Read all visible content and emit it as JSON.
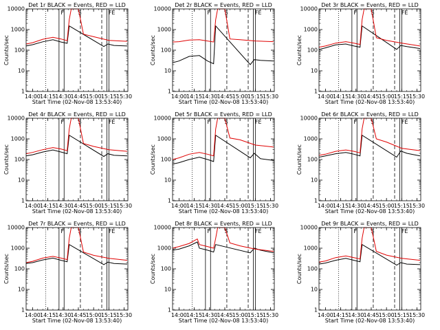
{
  "figure": {
    "xlabel": "Start Time (02-Nov-08 13:53:40)",
    "ylabel": "Counts/sec",
    "colors": {
      "events": "#000000",
      "lld": "#e00000"
    }
  },
  "chart_data": [
    {
      "type": "line",
      "title": "Det 1r BLACK = Events, RED = LLD",
      "xlabel": "Start Time (02-Nov-08 13:53:40)",
      "ylabel": "Counts/sec",
      "xticks": [
        "14:00",
        "14:15",
        "14:30",
        "14:45",
        "15:00",
        "15:15",
        "15:30"
      ],
      "xlim": [
        "13:53:40",
        "15:33:40"
      ],
      "yscale": "log",
      "yticks": [
        "1",
        "10",
        "100",
        "1000",
        "10000"
      ],
      "ylim": [
        1,
        10000
      ],
      "markers": [
        "F",
        "S",
        "F",
        "E"
      ],
      "series": [
        {
          "name": "Events",
          "color": "#000000",
          "x": [
            "13:53:40",
            "14:00",
            "14:10",
            "14:20",
            "14:28",
            "14:34",
            "14:36",
            "15:10",
            "15:14",
            "15:20",
            "15:33"
          ],
          "y": [
            160,
            185,
            255,
            320,
            250,
            215,
            1500,
            150,
            200,
            170,
            160
          ]
        },
        {
          "name": "LLD",
          "color": "#e00000",
          "x": [
            "13:53:40",
            "14:00",
            "14:10",
            "14:20",
            "14:28",
            "14:34",
            "14:36",
            "14:38",
            "14:45",
            "14:50",
            "15:00",
            "15:15",
            "15:33"
          ],
          "y": [
            200,
            230,
            340,
            420,
            350,
            290,
            3000,
            10000,
            10000,
            600,
            450,
            300,
            270
          ]
        }
      ]
    },
    {
      "type": "line",
      "title": "Det 2r BLACK = Events, RED = LLD",
      "xlabel": "Start Time (02-Nov-08 13:53:40)",
      "ylabel": "Counts/sec",
      "xticks": [
        "14:00",
        "14:15",
        "14:30",
        "14:45",
        "15:00",
        "15:15",
        "15:30"
      ],
      "xlim": [
        "13:53:40",
        "15:33:40"
      ],
      "yscale": "log",
      "yticks": [
        "1",
        "10",
        "100",
        "1000",
        "10000"
      ],
      "ylim": [
        1,
        10000
      ],
      "markers": [
        "F",
        "S",
        "F",
        "E"
      ],
      "series": [
        {
          "name": "Events",
          "color": "#000000",
          "x": [
            "13:53:40",
            "14:00",
            "14:10",
            "14:20",
            "14:28",
            "14:34",
            "14:36",
            "15:10",
            "15:14",
            "15:20",
            "15:33"
          ],
          "y": [
            25,
            30,
            50,
            55,
            30,
            22,
            1500,
            20,
            35,
            32,
            30
          ]
        },
        {
          "name": "LLD",
          "color": "#e00000",
          "x": [
            "13:53:40",
            "14:00",
            "14:10",
            "14:20",
            "14:28",
            "14:34",
            "14:36",
            "14:38",
            "14:45",
            "14:50",
            "15:00",
            "15:15",
            "15:33"
          ],
          "y": [
            250,
            260,
            310,
            320,
            280,
            250,
            3000,
            10000,
            10000,
            350,
            320,
            280,
            260
          ]
        }
      ]
    },
    {
      "type": "line",
      "title": "Det 3r BLACK = Events, RED = LLD",
      "xlabel": "Start Time (02-Nov-08 13:53:40)",
      "ylabel": "Counts/sec",
      "xticks": [
        "14:00",
        "14:15",
        "14:30",
        "14:45",
        "15:00",
        "15:15",
        "15:30"
      ],
      "xlim": [
        "13:53:40",
        "15:33:40"
      ],
      "yscale": "log",
      "yticks": [
        "1",
        "10",
        "100",
        "1000",
        "10000"
      ],
      "ylim": [
        1,
        10000
      ],
      "markers": [
        "F",
        "S",
        "F",
        "E"
      ],
      "series": [
        {
          "name": "Events",
          "color": "#000000",
          "x": [
            "13:53:40",
            "14:00",
            "14:10",
            "14:20",
            "14:28",
            "14:34",
            "14:36",
            "15:10",
            "15:14",
            "15:20",
            "15:33"
          ],
          "y": [
            110,
            130,
            180,
            200,
            160,
            140,
            1500,
            110,
            170,
            150,
            120
          ]
        },
        {
          "name": "LLD",
          "color": "#e00000",
          "x": [
            "13:53:40",
            "14:00",
            "14:10",
            "14:20",
            "14:28",
            "14:34",
            "14:36",
            "14:38",
            "14:45",
            "14:50",
            "15:00",
            "15:15",
            "15:33"
          ],
          "y": [
            140,
            160,
            220,
            260,
            220,
            190,
            3000,
            10000,
            10000,
            400,
            300,
            220,
            160
          ]
        }
      ]
    },
    {
      "type": "line",
      "title": "Det 4r BLACK = Events, RED = LLD",
      "xlabel": "Start Time (02-Nov-08 13:53:40)",
      "ylabel": "Counts/sec",
      "xticks": [
        "14:00",
        "14:15",
        "14:30",
        "14:45",
        "15:00",
        "15:15",
        "15:30"
      ],
      "xlim": [
        "13:53:40",
        "15:33:40"
      ],
      "yscale": "log",
      "yticks": [
        "1",
        "10",
        "100",
        "1000",
        "10000"
      ],
      "ylim": [
        1,
        10000
      ],
      "markers": [
        "F",
        "S",
        "F",
        "E"
      ],
      "series": [
        {
          "name": "Events",
          "color": "#000000",
          "x": [
            "13:53:40",
            "14:00",
            "14:10",
            "14:20",
            "14:28",
            "14:34",
            "14:36",
            "15:10",
            "15:14",
            "15:20",
            "15:33"
          ],
          "y": [
            150,
            170,
            230,
            290,
            230,
            190,
            1500,
            140,
            190,
            160,
            150
          ]
        },
        {
          "name": "LLD",
          "color": "#e00000",
          "x": [
            "13:53:40",
            "14:00",
            "14:10",
            "14:20",
            "14:28",
            "14:34",
            "14:36",
            "14:38",
            "14:45",
            "14:50",
            "15:00",
            "15:15",
            "15:33"
          ],
          "y": [
            190,
            220,
            300,
            380,
            320,
            270,
            3000,
            10000,
            10000,
            600,
            430,
            300,
            250
          ]
        }
      ]
    },
    {
      "type": "line",
      "title": "Det 5r BLACK = Events, RED = LLD",
      "xlabel": "Start Time (02-Nov-08 13:53:40)",
      "ylabel": "Counts/sec",
      "xticks": [
        "14:00",
        "14:15",
        "14:30",
        "14:45",
        "15:00",
        "15:15",
        "15:30"
      ],
      "xlim": [
        "13:53:40",
        "15:33:40"
      ],
      "yscale": "log",
      "yticks": [
        "1",
        "10",
        "100",
        "1000",
        "10000"
      ],
      "ylim": [
        1,
        10000
      ],
      "markers": [
        "F",
        "S",
        "F",
        "E"
      ],
      "series": [
        {
          "name": "Events",
          "color": "#000000",
          "x": [
            "13:53:40",
            "14:00",
            "14:10",
            "14:20",
            "14:28",
            "14:34",
            "14:36",
            "15:10",
            "15:14",
            "15:20",
            "15:33"
          ],
          "y": [
            60,
            70,
            100,
            130,
            100,
            80,
            1500,
            120,
            200,
            110,
            90
          ]
        },
        {
          "name": "LLD",
          "color": "#e00000",
          "x": [
            "13:53:40",
            "14:00",
            "14:10",
            "14:20",
            "14:28",
            "14:34",
            "14:36",
            "14:38",
            "14:45",
            "14:50",
            "15:00",
            "15:15",
            "15:33"
          ],
          "y": [
            100,
            120,
            180,
            220,
            180,
            150,
            3000,
            10000,
            10000,
            1100,
            900,
            500,
            400
          ]
        }
      ]
    },
    {
      "type": "line",
      "title": "Det 6r BLACK = Events, RED = LLD",
      "xlabel": "Start Time (02-Nov-08 13:53:40)",
      "ylabel": "Counts/sec",
      "xticks": [
        "14:00",
        "14:15",
        "14:30",
        "14:45",
        "15:00",
        "15:15",
        "15:30"
      ],
      "xlim": [
        "13:53:40",
        "15:33:40"
      ],
      "yscale": "log",
      "yticks": [
        "1",
        "10",
        "100",
        "1000",
        "10000"
      ],
      "ylim": [
        1,
        10000
      ],
      "markers": [
        "F",
        "S",
        "F",
        "E"
      ],
      "series": [
        {
          "name": "Events",
          "color": "#000000",
          "x": [
            "13:53:40",
            "14:00",
            "14:10",
            "14:20",
            "14:28",
            "14:34",
            "14:36",
            "15:10",
            "15:14",
            "15:20",
            "15:33"
          ],
          "y": [
            130,
            150,
            190,
            220,
            180,
            150,
            1500,
            130,
            260,
            200,
            150
          ]
        },
        {
          "name": "LLD",
          "color": "#e00000",
          "x": [
            "13:53:40",
            "14:00",
            "14:10",
            "14:20",
            "14:28",
            "14:34",
            "14:36",
            "14:38",
            "14:45",
            "14:50",
            "15:00",
            "15:15",
            "15:33"
          ],
          "y": [
            160,
            180,
            250,
            290,
            250,
            210,
            3000,
            10000,
            10000,
            1000,
            700,
            350,
            270
          ]
        }
      ]
    },
    {
      "type": "line",
      "title": "Det 7r BLACK = Events, RED = LLD",
      "xlabel": "Start Time (02-Nov-08 13:53:40)",
      "ylabel": "Counts/sec",
      "xticks": [
        "14:00",
        "14:15",
        "14:30",
        "14:45",
        "15:00",
        "15:15",
        "15:30"
      ],
      "xlim": [
        "13:53:40",
        "15:33:40"
      ],
      "yscale": "log",
      "yticks": [
        "1",
        "10",
        "100",
        "1000",
        "10000"
      ],
      "ylim": [
        1,
        10000
      ],
      "markers": [
        "F",
        "S",
        "F",
        "E"
      ],
      "series": [
        {
          "name": "Events",
          "color": "#000000",
          "x": [
            "13:53:40",
            "14:00",
            "14:10",
            "14:20",
            "14:28",
            "14:34",
            "14:36",
            "15:10",
            "15:14",
            "15:20",
            "15:33"
          ],
          "y": [
            180,
            200,
            270,
            330,
            260,
            220,
            1500,
            160,
            210,
            180,
            170
          ]
        },
        {
          "name": "LLD",
          "color": "#e00000",
          "x": [
            "13:53:40",
            "14:00",
            "14:10",
            "14:20",
            "14:28",
            "14:34",
            "14:36",
            "14:38",
            "14:45",
            "14:50",
            "15:00",
            "15:15",
            "15:33"
          ],
          "y": [
            200,
            230,
            330,
            400,
            330,
            280,
            3000,
            10000,
            10000,
            650,
            450,
            320,
            260
          ]
        }
      ]
    },
    {
      "type": "line",
      "title": "Det 8r BLACK = Events, RED = LLD",
      "xlabel": "Start Time (02-Nov-08 13:53:40)",
      "ylabel": "Counts/sec",
      "xticks": [
        "14:00",
        "14:15",
        "14:30",
        "14:45",
        "15:00",
        "15:15",
        "15:30"
      ],
      "xlim": [
        "13:53:40",
        "15:33:40"
      ],
      "yscale": "log",
      "yticks": [
        "1",
        "10",
        "100",
        "1000",
        "10000"
      ],
      "ylim": [
        1,
        10000
      ],
      "markers": [
        "F",
        "S",
        "F",
        "E"
      ],
      "series": [
        {
          "name": "Events",
          "color": "#000000",
          "x": [
            "13:53:40",
            "14:00",
            "14:10",
            "14:18",
            "14:20",
            "14:28",
            "14:34",
            "14:36",
            "15:10",
            "15:14",
            "15:20",
            "15:33"
          ],
          "y": [
            800,
            900,
            1300,
            2000,
            1000,
            800,
            650,
            1500,
            600,
            1000,
            800,
            600
          ]
        },
        {
          "name": "LLD",
          "color": "#e00000",
          "x": [
            "13:53:40",
            "14:00",
            "14:10",
            "14:18",
            "14:20",
            "14:28",
            "14:34",
            "14:36",
            "14:38",
            "14:45",
            "14:50",
            "15:00",
            "15:15",
            "15:33"
          ],
          "y": [
            1000,
            1200,
            1700,
            2800,
            1500,
            1200,
            1000,
            3000,
            10000,
            10000,
            1800,
            1300,
            900,
            700
          ]
        }
      ]
    },
    {
      "type": "line",
      "title": "Det 9r BLACK = Events, RED = LLD",
      "xlabel": "Start Time (02-Nov-08 13:53:40)",
      "ylabel": "Counts/sec",
      "xticks": [
        "14:00",
        "14:15",
        "14:30",
        "14:45",
        "15:00",
        "15:15",
        "15:30"
      ],
      "xlim": [
        "13:53:40",
        "15:33:40"
      ],
      "yscale": "log",
      "yticks": [
        "1",
        "10",
        "100",
        "1000",
        "10000"
      ],
      "ylim": [
        1,
        10000
      ],
      "markers": [
        "F",
        "S",
        "F",
        "E"
      ],
      "series": [
        {
          "name": "Events",
          "color": "#000000",
          "x": [
            "13:53:40",
            "14:00",
            "14:10",
            "14:20",
            "14:28",
            "14:34",
            "14:36",
            "15:10",
            "15:14",
            "15:20",
            "15:33"
          ],
          "y": [
            170,
            190,
            260,
            320,
            260,
            220,
            1500,
            150,
            200,
            170,
            160
          ]
        },
        {
          "name": "LLD",
          "color": "#e00000",
          "x": [
            "13:53:40",
            "14:00",
            "14:10",
            "14:20",
            "14:28",
            "14:34",
            "14:36",
            "14:38",
            "14:45",
            "14:50",
            "15:00",
            "15:15",
            "15:33"
          ],
          "y": [
            210,
            240,
            350,
            420,
            350,
            300,
            3000,
            10000,
            10000,
            700,
            460,
            320,
            260
          ]
        }
      ]
    }
  ]
}
